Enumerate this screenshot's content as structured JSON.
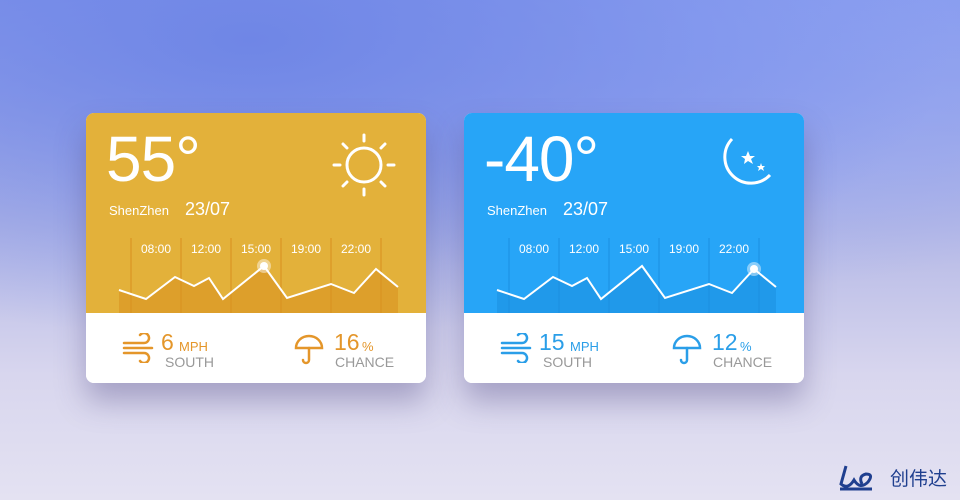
{
  "cards": [
    {
      "temperature": "55°",
      "city": "ShenZhen",
      "date": "23/07",
      "weather_icon": "sun-icon",
      "color": "#e3b13a",
      "accent": "#e4962a",
      "line_color": "#d9901f",
      "times": [
        "08:00",
        "12:00",
        "15:00",
        "19:00",
        "22:00"
      ],
      "trend": [
        23,
        14,
        36,
        27,
        35,
        14,
        47,
        15,
        29,
        20,
        44,
        26
      ],
      "highlight_index": 6,
      "wind": {
        "value": "6",
        "unit": "MPH",
        "direction": "SOUTH"
      },
      "rain": {
        "value": "16",
        "unit": "%",
        "label": "CHANCE"
      }
    },
    {
      "temperature": "-40°",
      "city": "ShenZhen",
      "date": "23/07",
      "weather_icon": "moon-stars-icon",
      "color": "#27a5f7",
      "accent": "#2a9ee8",
      "line_color": "#1b8fe0",
      "times": [
        "08:00",
        "12:00",
        "15:00",
        "19:00",
        "22:00"
      ],
      "trend": [
        23,
        14,
        36,
        27,
        35,
        14,
        47,
        15,
        29,
        20,
        44,
        26
      ],
      "highlight_index": 10,
      "wind": {
        "value": "15",
        "unit": "MPH",
        "direction": "SOUTH"
      },
      "rain": {
        "value": "12",
        "unit": "%",
        "label": "CHANCE"
      }
    }
  ],
  "logo": {
    "text": "创伟达"
  }
}
